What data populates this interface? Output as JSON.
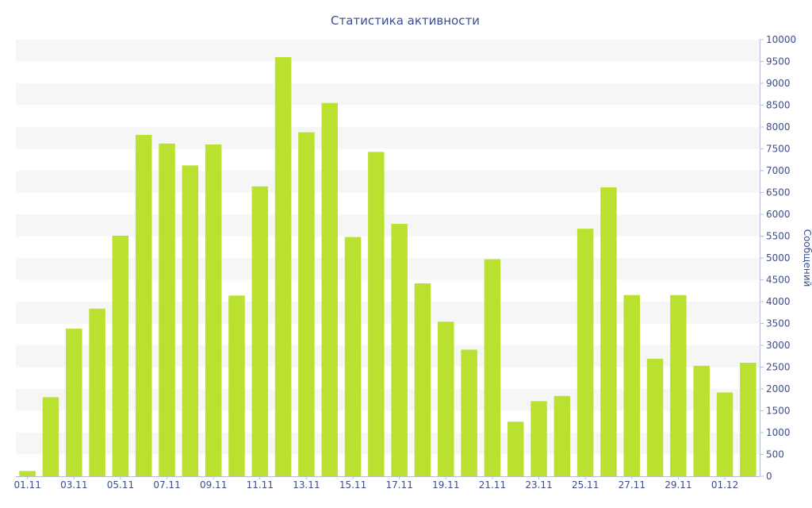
{
  "chart_data": {
    "type": "bar",
    "title": "Статистика активности",
    "ylabel": "Сообщений",
    "xlabel": "",
    "ylim": [
      0,
      10000
    ],
    "ytick_step": 500,
    "y_axis_side": "right",
    "grid": "horizontal bands",
    "categories": [
      "01.11",
      "02.11",
      "03.11",
      "04.11",
      "05.11",
      "06.11",
      "07.11",
      "08.11",
      "09.11",
      "10.11",
      "11.11",
      "12.11",
      "13.11",
      "14.11",
      "15.11",
      "16.11",
      "17.11",
      "18.11",
      "19.11",
      "20.11",
      "21.11",
      "22.11",
      "23.11",
      "24.11",
      "25.11",
      "26.11",
      "27.11",
      "28.11",
      "29.11",
      "30.11",
      "01.12",
      "02.12"
    ],
    "x_tick_labels": [
      "01.11",
      "03.11",
      "05.11",
      "07.11",
      "09.11",
      "11.11",
      "13.11",
      "15.11",
      "17.11",
      "19.11",
      "21.11",
      "23.11",
      "25.11",
      "27.11",
      "29.11",
      "01.12"
    ],
    "values": [
      120,
      1810,
      3380,
      3840,
      5510,
      7820,
      7620,
      7120,
      7600,
      4140,
      6640,
      9600,
      7880,
      8550,
      5480,
      7430,
      5780,
      4420,
      3540,
      2900,
      4970,
      1250,
      1720,
      1840,
      5670,
      6620,
      4150,
      2690,
      4150,
      2530,
      1920,
      2600
    ],
    "bar_color": "#bbe130",
    "band_color": "#f6f6f6",
    "text_color": "#3a4d8f"
  }
}
